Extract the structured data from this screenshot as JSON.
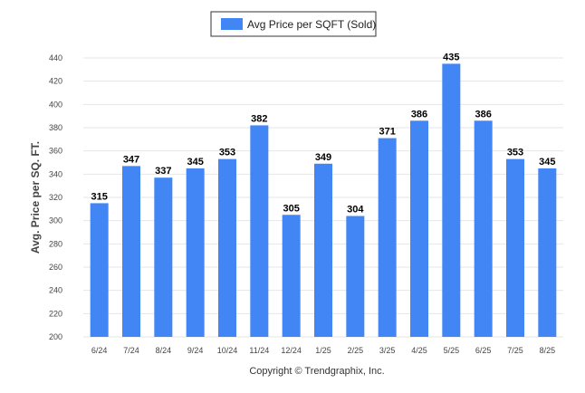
{
  "chart_data": {
    "type": "bar",
    "categories": [
      "6/24",
      "7/24",
      "8/24",
      "9/24",
      "10/24",
      "11/24",
      "12/24",
      "1/25",
      "2/25",
      "3/25",
      "4/25",
      "5/25",
      "6/25",
      "7/25",
      "8/25"
    ],
    "series": [
      {
        "name": "Avg Price per SQFT (Sold)",
        "values": [
          315,
          347,
          337,
          345,
          353,
          382,
          305,
          349,
          304,
          371,
          386,
          435,
          386,
          353,
          345
        ]
      }
    ],
    "ylabel": "Avg. Price per SQ. FT.",
    "xlabel": "",
    "ylim": [
      200,
      440
    ],
    "yticks": [
      200,
      220,
      240,
      260,
      280,
      300,
      320,
      340,
      360,
      380,
      400,
      420,
      440
    ],
    "grid": true,
    "legend_position": "top-center",
    "data_labels": true
  },
  "colors": {
    "bar": "#4285f4",
    "grid": "#e6e6e6"
  },
  "copyright": "Copyright © Trendgraphix, Inc."
}
